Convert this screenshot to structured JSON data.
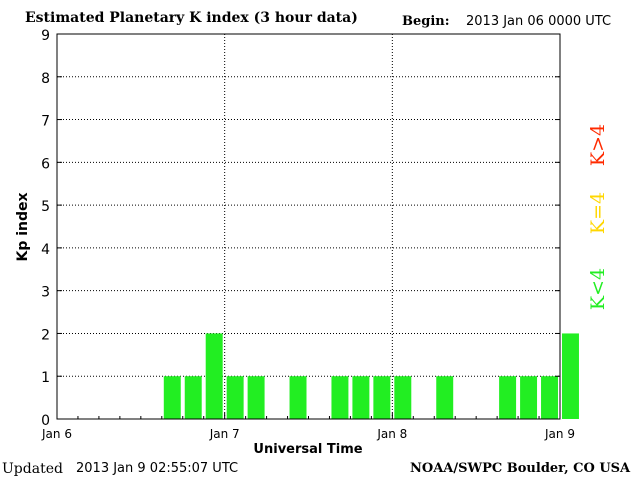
{
  "header": {
    "title": "Estimated Planetary K index (3 hour data)",
    "begin_label": "Begin:",
    "begin_value": "2013 Jan 06 0000 UTC"
  },
  "footer": {
    "updated_label": "Updated",
    "updated_value": "2013 Jan  9 02:55:07 UTC",
    "credit": "NOAA/SWPC Boulder, CO USA"
  },
  "legend": [
    {
      "label": "K>4",
      "color": "#ff2a00"
    },
    {
      "label": "K=4",
      "color": "#ffd700"
    },
    {
      "label": "K<4",
      "color": "#22ee22"
    }
  ],
  "chart_data": {
    "type": "bar",
    "xlabel": "Universal Time",
    "ylabel": "Kp index",
    "ylim": [
      0,
      9
    ],
    "yticks": [
      0,
      1,
      2,
      3,
      4,
      5,
      6,
      7,
      8,
      9
    ],
    "x_tick_labels": [
      "Jan 6",
      "Jan 7",
      "Jan 8",
      "Jan 9"
    ],
    "interval_hours": 3,
    "grid": true,
    "bar_color": "#22ee22",
    "values": [
      null,
      null,
      null,
      null,
      null,
      1,
      1,
      2,
      1,
      1,
      null,
      1,
      null,
      1,
      1,
      1,
      1,
      null,
      1,
      null,
      null,
      1,
      1,
      1,
      2
    ]
  }
}
